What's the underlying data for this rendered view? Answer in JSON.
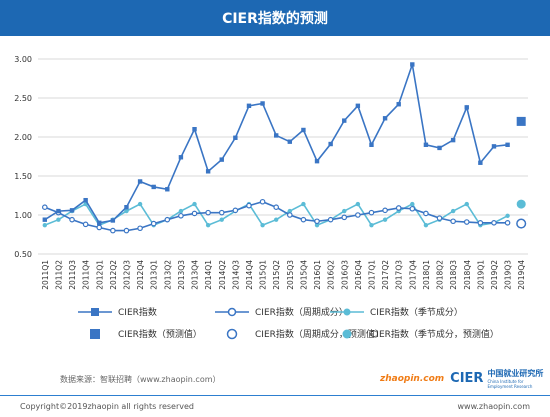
{
  "title": "CIER指数的预测",
  "source": "数据来源：智联招聘（www.zhaopin.com）",
  "copyright": "Copyright©2019zhaopin all rights reserved",
  "website": "www.zhaopin.com",
  "logos": {
    "zhaopin": "zhaopin.com",
    "cier": "CIER",
    "cier_cn": "中国就业研究所",
    "cier_en": "China Institute for Employment Research"
  },
  "colors": {
    "cier": "#3a75c4",
    "cycle": "#3a75c4",
    "season": "#5bbcd6",
    "grid": "#d9d9d9",
    "header": "#1d68b3"
  },
  "legend": [
    {
      "label": "CIER指数",
      "symbol": "square-line",
      "color": "#3a75c4"
    },
    {
      "label": "CIER指数（周期成分）",
      "symbol": "circle-open-line",
      "color": "#3a75c4"
    },
    {
      "label": "CIER指数（季节成分）",
      "symbol": "circle-filled-line",
      "color": "#5bbcd6"
    },
    {
      "label": "CIER指数（预测值）",
      "symbol": "square",
      "color": "#3a75c4"
    },
    {
      "label": "CIER指数（周期成分，预测值）",
      "symbol": "circle-open",
      "color": "#3a75c4"
    },
    {
      "label": "CIER指数（季节成分，预测值）",
      "symbol": "circle-filled",
      "color": "#5bbcd6"
    }
  ],
  "chart_data": {
    "type": "line",
    "title": "CIER指数的预测",
    "xlabel": "",
    "ylabel": "",
    "ylim": [
      0.5,
      3.0
    ],
    "yticks": [
      "0.50",
      "1.00",
      "1.50",
      "2.00",
      "2.50",
      "3.00"
    ],
    "grid": "horizontal",
    "legend_position": "bottom",
    "categories": [
      "2011Q1",
      "2011Q2",
      "2011Q3",
      "2011Q4",
      "2012Q1",
      "2012Q2",
      "2012Q3",
      "2012Q4",
      "2013Q1",
      "2013Q2",
      "2013Q3",
      "2013Q4",
      "2014Q1",
      "2014Q2",
      "2014Q3",
      "2014Q4",
      "2015Q1",
      "2015Q2",
      "2015Q3",
      "2015Q4",
      "2016Q1",
      "2016Q2",
      "2016Q3",
      "2016Q4",
      "2017Q1",
      "2017Q2",
      "2017Q3",
      "2017Q4",
      "2018Q1",
      "2018Q2",
      "2018Q3",
      "2018Q4",
      "2019Q1",
      "2019Q2",
      "2019Q3",
      "2019Q4"
    ],
    "series": [
      {
        "name": "CIER指数",
        "marker": "square",
        "values": [
          0.94,
          1.05,
          1.06,
          1.19,
          0.9,
          0.93,
          1.1,
          1.43,
          1.36,
          1.33,
          1.74,
          2.1,
          1.56,
          1.71,
          1.99,
          2.4,
          2.43,
          2.02,
          1.94,
          2.09,
          1.69,
          1.91,
          2.21,
          2.4,
          1.9,
          2.24,
          2.42,
          2.93,
          1.9,
          1.86,
          1.96,
          2.38,
          1.67,
          1.88,
          1.9,
          null
        ]
      },
      {
        "name": "CIER指数（周期成分）",
        "marker": "circle-open",
        "values": [
          1.1,
          1.03,
          0.94,
          0.88,
          0.84,
          0.8,
          0.8,
          0.83,
          0.89,
          0.94,
          0.99,
          1.02,
          1.03,
          1.03,
          1.06,
          1.12,
          1.17,
          1.1,
          1.0,
          0.94,
          0.92,
          0.94,
          0.97,
          1.0,
          1.03,
          1.06,
          1.09,
          1.08,
          1.02,
          0.96,
          0.92,
          0.91,
          0.9,
          0.9,
          0.9,
          null
        ]
      },
      {
        "name": "CIER指数（季节成分）",
        "marker": "circle-filled",
        "values": [
          0.87,
          0.94,
          1.05,
          1.14,
          0.87,
          0.94,
          1.05,
          1.14,
          0.87,
          0.94,
          1.05,
          1.14,
          0.87,
          0.94,
          1.05,
          1.14,
          0.87,
          0.94,
          1.05,
          1.14,
          0.87,
          0.94,
          1.05,
          1.14,
          0.87,
          0.94,
          1.05,
          1.14,
          0.87,
          0.94,
          1.05,
          1.14,
          0.87,
          0.9,
          0.99,
          null
        ]
      }
    ],
    "forecast": {
      "category": "2019Q4",
      "cier": 2.2,
      "cycle": 0.89,
      "season": 1.14
    }
  }
}
